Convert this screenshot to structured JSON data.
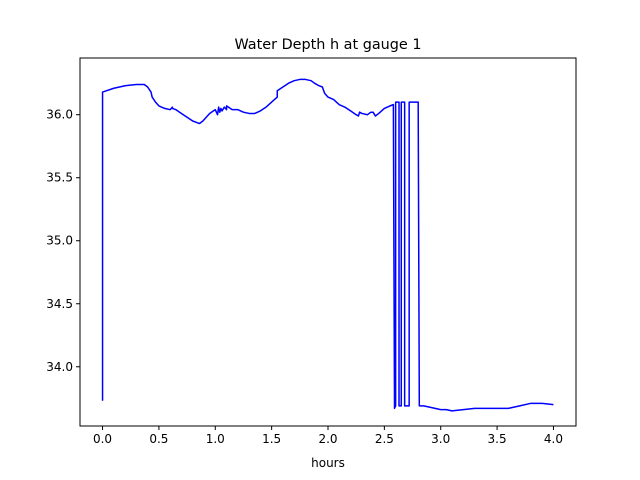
{
  "chart_data": {
    "type": "line",
    "title": "Water Depth h at gauge 1",
    "xlabel": "hours",
    "ylabel": "",
    "xlim": [
      -0.2,
      4.2
    ],
    "ylim": [
      33.53,
      36.45
    ],
    "xticks": [
      0.0,
      0.5,
      1.0,
      1.5,
      2.0,
      2.5,
      3.0,
      3.5,
      4.0
    ],
    "xtick_labels": [
      "0.0",
      "0.5",
      "1.0",
      "1.5",
      "2.0",
      "2.5",
      "3.0",
      "3.5",
      "4.0"
    ],
    "yticks": [
      34.0,
      34.5,
      35.0,
      35.5,
      36.0
    ],
    "ytick_labels": [
      "34.0",
      "34.5",
      "35.0",
      "35.5",
      "36.0"
    ],
    "grid": false,
    "legend": "none",
    "series": [
      {
        "color": "#0000ff",
        "x": [
          0.0,
          0.0,
          0.1,
          0.2,
          0.3,
          0.37,
          0.4,
          0.43,
          0.44,
          0.47,
          0.5,
          0.55,
          0.6,
          0.62,
          0.62,
          0.65,
          0.7,
          0.75,
          0.8,
          0.86,
          0.89,
          0.92,
          0.95,
          1.0,
          1.02,
          1.03,
          1.04,
          1.05,
          1.06,
          1.08,
          1.1,
          1.1,
          1.15,
          1.2,
          1.25,
          1.3,
          1.35,
          1.4,
          1.45,
          1.5,
          1.55,
          1.55,
          1.6,
          1.65,
          1.7,
          1.75,
          1.8,
          1.85,
          1.88,
          1.92,
          1.95,
          1.97,
          2.0,
          2.05,
          2.1,
          2.15,
          2.2,
          2.25,
          2.27,
          2.28,
          2.3,
          2.35,
          2.38,
          2.4,
          2.42,
          2.45,
          2.5,
          2.55,
          2.58,
          2.59,
          2.6,
          2.6,
          2.63,
          2.63,
          2.65,
          2.65,
          2.68,
          2.68,
          2.7,
          2.72,
          2.72,
          2.75,
          2.8,
          2.81,
          2.85,
          2.9,
          2.95,
          3.0,
          3.05,
          3.1,
          3.2,
          3.3,
          3.4,
          3.5,
          3.6,
          3.7,
          3.8,
          3.9,
          4.0
        ],
        "y": [
          33.73,
          36.18,
          36.21,
          36.23,
          36.24,
          36.24,
          36.22,
          36.18,
          36.14,
          36.1,
          36.07,
          36.05,
          36.04,
          36.06,
          36.05,
          36.04,
          36.01,
          35.98,
          35.95,
          35.93,
          35.95,
          35.98,
          36.01,
          36.04,
          36.0,
          36.06,
          36.02,
          36.05,
          36.03,
          36.06,
          36.04,
          36.07,
          36.04,
          36.04,
          36.02,
          36.01,
          36.01,
          36.03,
          36.06,
          36.1,
          36.14,
          36.19,
          36.22,
          36.25,
          36.27,
          36.28,
          36.28,
          36.27,
          36.25,
          36.23,
          36.22,
          36.17,
          36.14,
          36.12,
          36.08,
          36.06,
          36.03,
          36.0,
          35.99,
          36.02,
          36.01,
          36.0,
          36.02,
          36.02,
          35.99,
          36.01,
          36.05,
          36.07,
          36.08,
          33.67,
          33.69,
          36.1,
          36.1,
          33.69,
          33.69,
          36.1,
          36.1,
          33.69,
          33.69,
          33.69,
          36.1,
          36.1,
          36.1,
          33.69,
          33.69,
          33.68,
          33.67,
          33.66,
          33.66,
          33.65,
          33.66,
          33.67,
          33.67,
          33.67,
          33.67,
          33.69,
          33.71,
          33.71,
          33.7
        ]
      }
    ]
  }
}
